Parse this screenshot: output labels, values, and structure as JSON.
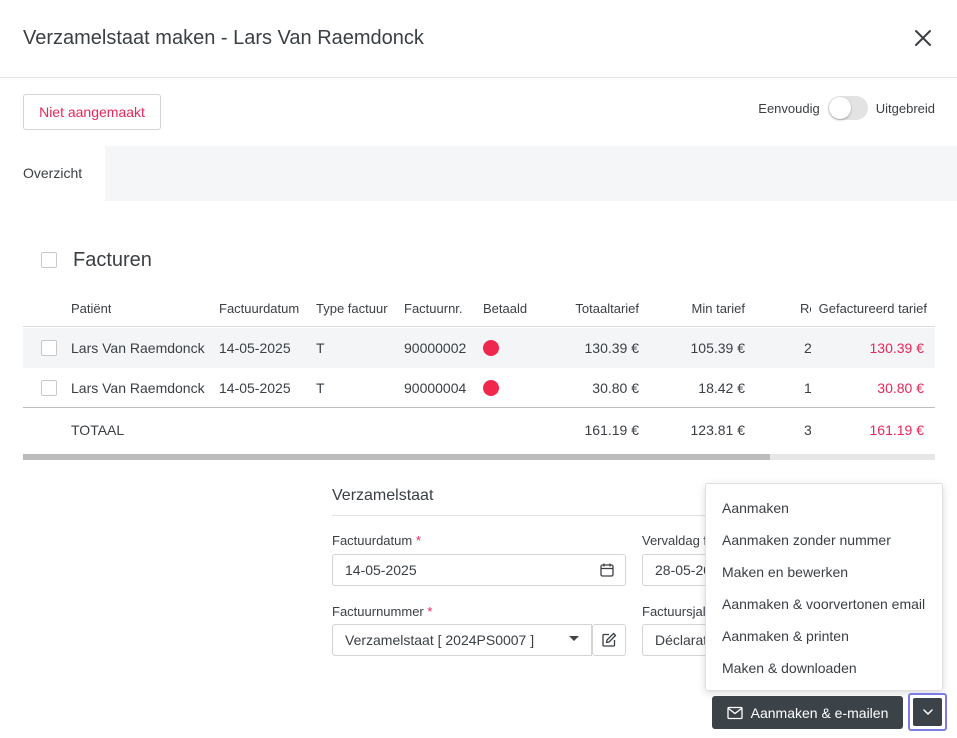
{
  "header": {
    "title": "Verzamelstaat maken - Lars Van Raemdonck",
    "close_icon": "close-icon"
  },
  "status_button": {
    "label": "Niet aangemaakt",
    "color": "#e6285a"
  },
  "view_toggle": {
    "left_label": "Eenvoudig",
    "right_label": "Uitgebreid",
    "checked": false
  },
  "overview": {
    "label": "Overzicht"
  },
  "invoices": {
    "title": "Facturen",
    "columns": [
      "Patiënt",
      "Factuurdatum",
      "Type factuur",
      "Factuurnr.",
      "Betaald",
      "Totaaltarief",
      "Min tarief",
      "Re",
      "Gefactureerd tarief"
    ],
    "rows": [
      {
        "patient": "Lars Van Raemdonck",
        "date": "14-05-2025",
        "type": "T",
        "number": "90000002",
        "paid_status": "unpaid",
        "total": "130.39 €",
        "min": "105.39 €",
        "re": "2",
        "billed": "130.39 €"
      },
      {
        "patient": "Lars Van Raemdonck",
        "date": "14-05-2025",
        "type": "T",
        "number": "90000004",
        "paid_status": "unpaid",
        "total": "30.80 €",
        "min": "18.42 €",
        "re": "1",
        "billed": "30.80 €"
      }
    ],
    "total": {
      "label": "TOTAAL",
      "total": "161.19 €",
      "min": "123.81 €",
      "re": "3",
      "billed": "161.19 €"
    },
    "unpaid_color": "#f0284f"
  },
  "form": {
    "title": "Verzamelstaat",
    "invoice_date_label": "Factuurdatum",
    "invoice_date_value": "14-05-2025",
    "due_date_label": "Vervaldag f",
    "due_date_value": "28-05-20",
    "invoice_number_label": "Factuurnummer",
    "invoice_number_value": "Verzamelstaat [ 2024PS0007 ]",
    "invoice_type_label": "Factuursjal",
    "invoice_type_value": "Déclarat",
    "required_mark": "*"
  },
  "dropdown_menu": {
    "items": [
      "Aanmaken",
      "Aanmaken zonder nummer",
      "Maken en bewerken",
      "Aanmaken & voorvertonen email",
      "Aanmaken & printen",
      "Maken & downloaden"
    ]
  },
  "actions": {
    "primary_label": "Aanmaken & e-mailen",
    "primary_icon": "mail-icon",
    "caret_icon": "chevron-down-icon"
  }
}
